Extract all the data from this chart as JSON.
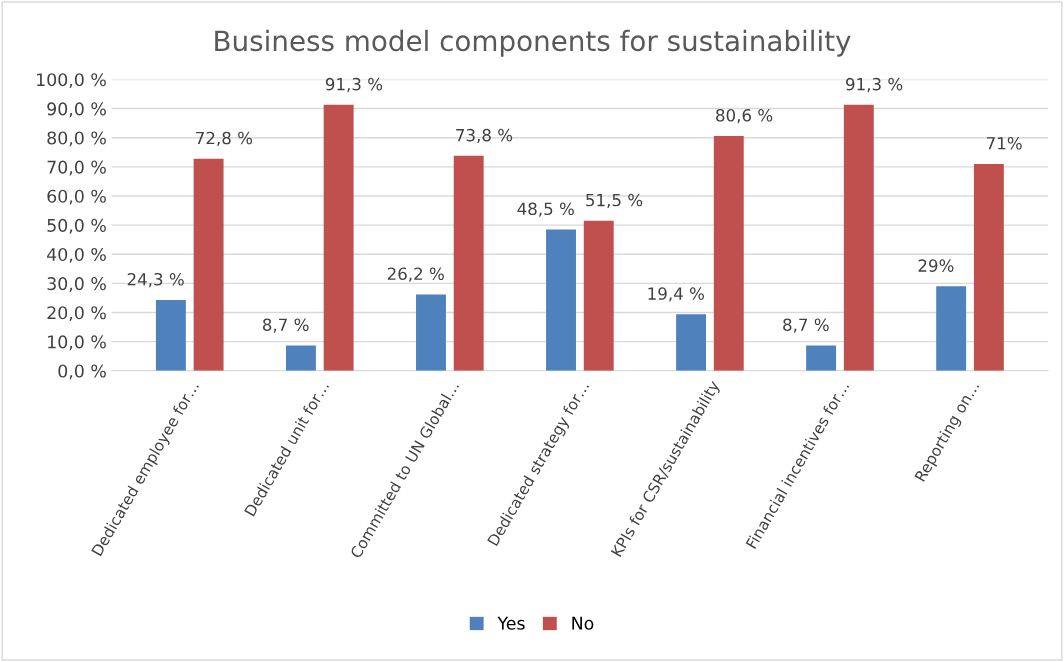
{
  "chart_data": {
    "type": "bar",
    "title": "Business model components for sustainability",
    "categories": [
      "Dedicated employee for…",
      "Dedicated unit for…",
      "Committed to UN Global…",
      "Dedicated strategy for…",
      "KPIs for CSR/sustainability",
      "Financial incentives for…",
      "Reporting on…"
    ],
    "series": [
      {
        "name": "Yes",
        "color": "#4f81bd",
        "values": [
          24.3,
          8.7,
          26.2,
          48.5,
          19.4,
          8.7,
          29
        ],
        "value_labels": [
          "24,3 %",
          "8,7 %",
          "26,2 %",
          "48,5 %",
          "19,4 %",
          "8,7 %",
          "29%"
        ]
      },
      {
        "name": "No",
        "color": "#c0504d",
        "values": [
          72.8,
          91.3,
          73.8,
          51.5,
          80.6,
          91.3,
          71
        ],
        "value_labels": [
          "72,8 %",
          "91,3 %",
          "73,8 %",
          "51,5 %",
          "80,6 %",
          "91,3 %",
          "71%"
        ]
      }
    ],
    "ylim": [
      0,
      100
    ],
    "yticks": [
      {
        "value": 0,
        "label": "0,0 %"
      },
      {
        "value": 10,
        "label": "10,0 %"
      },
      {
        "value": 20,
        "label": "20,0 %"
      },
      {
        "value": 30,
        "label": "30,0 %"
      },
      {
        "value": 40,
        "label": "40,0 %"
      },
      {
        "value": 50,
        "label": "50,0 %"
      },
      {
        "value": 60,
        "label": "60,0 %"
      },
      {
        "value": 70,
        "label": "70,0 %"
      },
      {
        "value": 80,
        "label": "80,0 %"
      },
      {
        "value": 90,
        "label": "90,0 %"
      },
      {
        "value": 100,
        "label": "100,0 %"
      }
    ],
    "grid": "y",
    "legend": "bottom"
  }
}
